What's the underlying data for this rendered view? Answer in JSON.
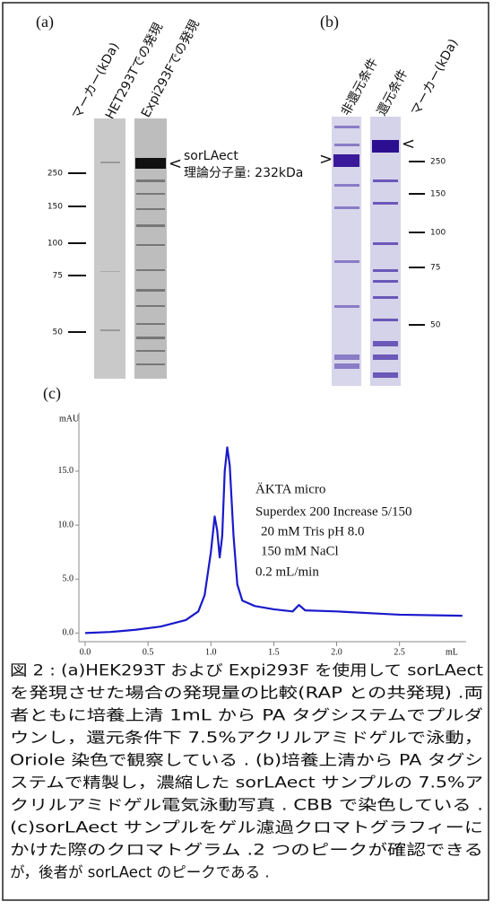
{
  "panel_a": {
    "label": "(a)",
    "lanes": [
      "マーカー(kDa)",
      "HET293Tでの発現",
      "Expi293Fでの発現"
    ],
    "markers": [
      250,
      150,
      100,
      75,
      50
    ],
    "annotation": [
      "sorLAect",
      "理論分子量: 232kDa"
    ],
    "arrow": "<"
  },
  "panel_b": {
    "label": "(b)",
    "lanes": [
      "非還元条件",
      "還元条件",
      "マーカー(kDa)"
    ],
    "markers": [
      250,
      150,
      100,
      75,
      50
    ],
    "arrows": [
      ">",
      "<"
    ]
  },
  "chart_data": {
    "type": "line",
    "label": "(c)",
    "ylabel": "mAU",
    "xlabel": "mL",
    "x": [
      0,
      0.2,
      0.4,
      0.6,
      0.8,
      0.9,
      0.95,
      1.0,
      1.03,
      1.05,
      1.07,
      1.09,
      1.11,
      1.13,
      1.15,
      1.18,
      1.21,
      1.25,
      1.35,
      1.5,
      1.65,
      1.7,
      1.75,
      2.0,
      2.5,
      3.0
    ],
    "series": [
      {
        "color": "#1a1acc",
        "values": [
          0.0,
          0.1,
          0.3,
          0.6,
          1.2,
          2.0,
          3.5,
          7.5,
          10.8,
          9.5,
          7.0,
          9.0,
          15.0,
          17.2,
          15.5,
          9.0,
          4.5,
          3.0,
          2.5,
          2.2,
          2.0,
          2.6,
          2.1,
          2.0,
          1.7,
          1.6
        ]
      }
    ],
    "xlim": [
      -0.05,
      3.03
    ],
    "ylim": [
      -0.8,
      20.4
    ],
    "xticks": [
      {
        "value": 0,
        "label": "0.0"
      },
      {
        "value": 0.5,
        "label": "0.5"
      },
      {
        "value": 1,
        "label": "1.0"
      },
      {
        "value": 1.5,
        "label": "1.5"
      },
      {
        "value": 2,
        "label": "2.0"
      },
      {
        "value": 2.5,
        "label": "2.5"
      }
    ],
    "yticks": [
      {
        "value": 0,
        "label": "0.0"
      },
      {
        "value": 5,
        "label": "5.0"
      },
      {
        "value": 10,
        "label": "10.0"
      },
      {
        "value": 15,
        "label": "15.0"
      }
    ],
    "annotation": [
      "ÄKTA micro",
      "Superdex 200 Increase 5/150",
      "20 mM Tris pH 8.0",
      "150 mM NaCl",
      "0.2 mL/min"
    ]
  },
  "caption": [
    "図 2 : (a)HEK293T および Expi293F を使用して sorLAect",
    "を発現させた場合の発現量の比較(RAP との共発現) .両",
    "者ともに培養上清 1mL から PA タグシステムでプルダ",
    "ウンし，還元条件下 7.5%アクリルアミドゲルで泳動，",
    "Oriole 染色で観察している . (b)培養上清から PA タグシ",
    "ステムで精製し，濃縮した sorLAect サンプルの 7.5%ア",
    "クリルアミドゲル電気泳動写真 . CBB で染色している .",
    "(c)sorLAect サンプルをゲル濾過クロマトグラフィーに",
    "かけた際のクロマトグラム .2 つのピークが確認できる",
    "が，後者が sorLAect のピークである ."
  ]
}
